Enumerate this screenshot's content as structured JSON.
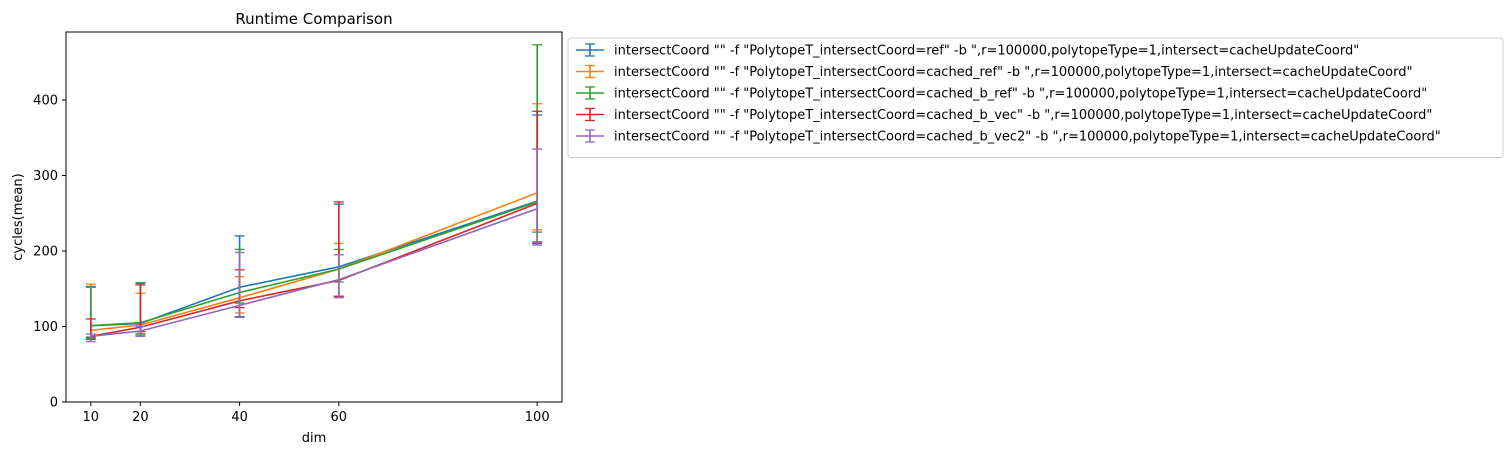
{
  "chart_data": {
    "type": "line",
    "title": "Runtime Comparison",
    "xlabel": "dim",
    "ylabel": "cycles(mean)",
    "x": [
      10,
      20,
      40,
      60,
      100
    ],
    "xlim": [
      5,
      105
    ],
    "ylim": [
      0,
      490
    ],
    "xticks": [
      10,
      20,
      40,
      60,
      100
    ],
    "yticks": [
      0,
      100,
      200,
      300,
      400
    ],
    "grid": false,
    "legend_position": "outside-top-right",
    "series": [
      {
        "name": "intersectCoord \"\" -f \"PolytopeT_intersectCoord=ref\" -b \",r=100000,polytopeType=1,intersect=cacheUpdateCoord\"",
        "color": "#1f77b4",
        "values": [
          101,
          104,
          152,
          179,
          266
        ],
        "error_low": [
          85,
          90,
          113,
          140,
          210
        ],
        "error_high": [
          153,
          157,
          220,
          262,
          380
        ]
      },
      {
        "name": "intersectCoord \"\" -f \"PolytopeT_intersectCoord=cached_ref\" -b \",r=100000,polytopeType=1,intersect=cacheUpdateCoord\"",
        "color": "#ff7f0e",
        "values": [
          95,
          102,
          138,
          176,
          277
        ],
        "error_low": [
          83,
          88,
          118,
          140,
          228
        ],
        "error_high": [
          156,
          144,
          166,
          210,
          395
        ]
      },
      {
        "name": "intersectCoord \"\" -f \"PolytopeT_intersectCoord=cached_b_ref\" -b \",r=100000,polytopeType=1,intersect=cacheUpdateCoord\"",
        "color": "#2ca02c",
        "values": [
          101,
          105,
          145,
          176,
          265
        ],
        "error_low": [
          86,
          90,
          131,
          159,
          225
        ],
        "error_high": [
          152,
          158,
          202,
          202,
          473
        ]
      },
      {
        "name": "intersectCoord \"\" -f \"PolytopeT_intersectCoord=cached_b_vec\" -b \",r=100000,polytopeType=1,intersect=cacheUpdateCoord\"",
        "color": "#d62728",
        "values": [
          87,
          99,
          134,
          161,
          263
        ],
        "error_low": [
          83,
          93,
          125,
          140,
          212
        ],
        "error_high": [
          110,
          155,
          175,
          265,
          385
        ]
      },
      {
        "name": "intersectCoord \"\" -f \"PolytopeT_intersectCoord=cached_b_vec2\" -b \",r=100000,polytopeType=1,intersect=cacheUpdateCoord\"",
        "color": "#9467bd",
        "values": [
          87,
          94,
          128,
          162,
          256
        ],
        "error_low": [
          80,
          87,
          112,
          138,
          208
        ],
        "error_high": [
          90,
          100,
          198,
          195,
          335
        ]
      }
    ]
  }
}
